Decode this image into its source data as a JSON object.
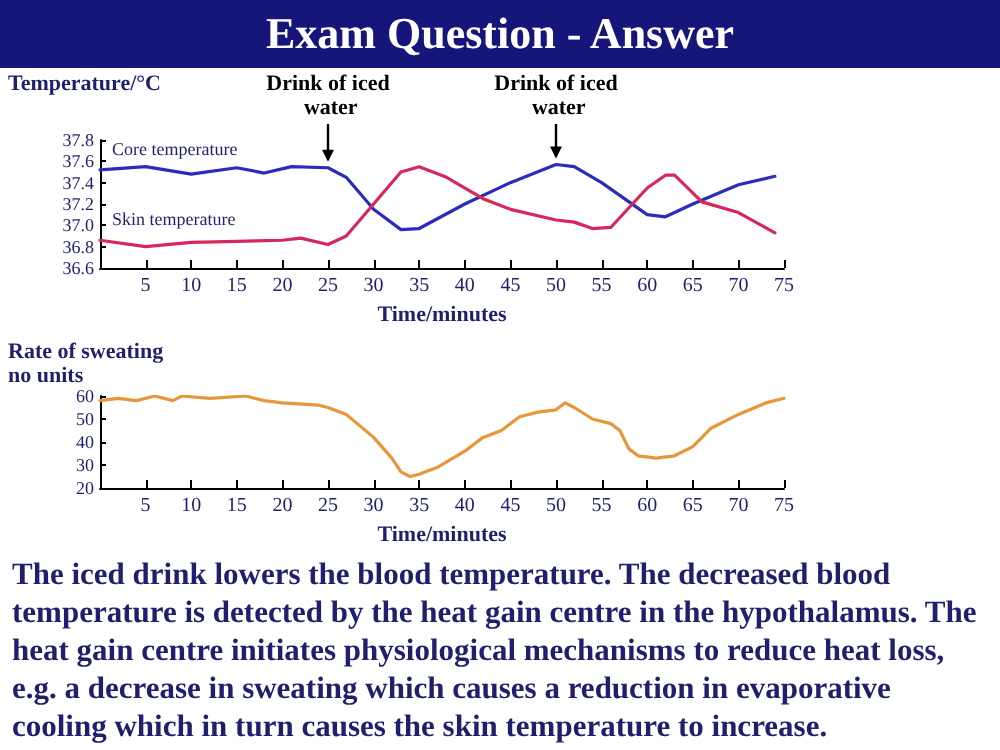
{
  "chart_data": [
    {
      "type": "line",
      "title": "Exam Question - Answer",
      "xlabel": "Time/minutes",
      "ylabel": "Temperature/°C",
      "xlim": [
        0,
        75
      ],
      "xticks": [
        5,
        10,
        15,
        20,
        25,
        30,
        35,
        40,
        45,
        50,
        55,
        60,
        65,
        70,
        75
      ],
      "ylim": [
        36.6,
        37.8
      ],
      "yticks": [
        36.6,
        36.8,
        {
          "value": 37,
          "label": "37.0"
        },
        37.2,
        37.4,
        37.6,
        37.8
      ],
      "grid": false,
      "legend": false,
      "marker": "none",
      "line_style": "solid",
      "annotations": [
        {
          "text": "Drink of iced water",
          "x": 25,
          "y": 37.54
        },
        {
          "text": "Drink of iced water",
          "x": 50,
          "y": 37.57
        }
      ],
      "series": [
        {
          "name": "Core temperature",
          "color": "#2b2bc0",
          "x": [
            0,
            5,
            10,
            15,
            18,
            21,
            25,
            27,
            30,
            33,
            35,
            40,
            45,
            50,
            52,
            55,
            60,
            62,
            65,
            70,
            74
          ],
          "values": [
            37.52,
            37.55,
            37.48,
            37.54,
            37.49,
            37.55,
            37.54,
            37.45,
            37.15,
            36.96,
            36.97,
            37.2,
            37.4,
            37.57,
            37.55,
            37.4,
            37.1,
            37.08,
            37.2,
            37.38,
            37.46
          ]
        },
        {
          "name": "Skin temperature",
          "color": "#d8285a",
          "x": [
            0,
            5,
            10,
            15,
            20,
            22,
            25,
            27,
            30,
            33,
            35,
            38,
            42,
            45,
            50,
            52,
            54,
            56,
            60,
            62,
            63,
            66,
            70,
            74
          ],
          "values": [
            36.86,
            36.8,
            36.84,
            36.85,
            36.86,
            36.88,
            36.82,
            36.9,
            37.2,
            37.5,
            37.55,
            37.45,
            37.25,
            37.15,
            37.05,
            37.03,
            36.97,
            36.98,
            37.35,
            37.47,
            37.47,
            37.22,
            37.12,
            36.93
          ]
        }
      ]
    },
    {
      "type": "line",
      "xlabel": "Time/minutes",
      "ylabel": "Rate of sweating no units",
      "xlim": [
        0,
        75
      ],
      "xticks": [
        5,
        10,
        15,
        20,
        25,
        30,
        35,
        40,
        45,
        50,
        55,
        60,
        65,
        70,
        75
      ],
      "ylim": [
        20,
        60
      ],
      "yticks": [
        20,
        30,
        40,
        50,
        60
      ],
      "grid": false,
      "legend": false,
      "marker": "none",
      "line_style": "solid",
      "annotations": [
        "The iced drink lowers the blood temperature. The decreased blood temperature is detected by the heat gain centre in the hypothalamus. The heat gain centre initiates physiological mechanisms to reduce heat loss, e.g. a decrease in sweating which causes a reduction in evaporative cooling which in turn causes the skin temperature to increase."
      ],
      "series": [
        {
          "color": "#e8963a",
          "x": [
            0,
            2,
            4,
            6,
            8,
            9,
            12,
            16,
            18,
            20,
            24,
            25,
            27,
            30,
            32,
            33,
            34,
            35,
            37,
            40,
            42,
            44,
            46,
            48,
            50,
            51,
            52,
            54,
            56,
            57,
            58,
            59,
            61,
            63,
            65,
            67,
            70,
            73,
            75
          ],
          "values": [
            58,
            59,
            58,
            60,
            58,
            60,
            59,
            60,
            58,
            57,
            56,
            55,
            52,
            42,
            33,
            27,
            25,
            26,
            29,
            36,
            42,
            45,
            51,
            53,
            54,
            57,
            55,
            50,
            48,
            45,
            37,
            34,
            33,
            34,
            38,
            46,
            52,
            57,
            59
          ]
        }
      ]
    }
  ]
}
